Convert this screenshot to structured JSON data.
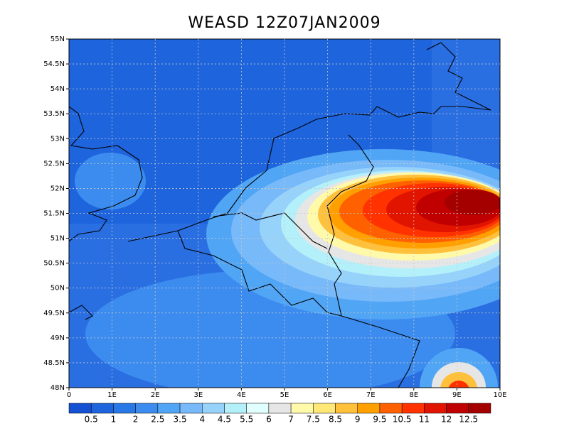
{
  "chart_data": {
    "type": "contour",
    "title": "WEASD 12Z07JAN2009",
    "xlim": [
      0,
      10
    ],
    "ylim": [
      48,
      55
    ],
    "xticks": [
      {
        "value": 0,
        "label": "0"
      },
      {
        "value": 1,
        "label": "1E"
      },
      {
        "value": 2,
        "label": "2E"
      },
      {
        "value": 3,
        "label": "3E"
      },
      {
        "value": 4,
        "label": "4E"
      },
      {
        "value": 5,
        "label": "5E"
      },
      {
        "value": 6,
        "label": "6E"
      },
      {
        "value": 7,
        "label": "7E"
      },
      {
        "value": 8,
        "label": "8E"
      },
      {
        "value": 9,
        "label": "9E"
      },
      {
        "value": 10,
        "label": "10E"
      }
    ],
    "yticks": [
      {
        "value": 48,
        "label": "48N"
      },
      {
        "value": 48.5,
        "label": "48.5N"
      },
      {
        "value": 49,
        "label": "49N"
      },
      {
        "value": 49.5,
        "label": "49.5N"
      },
      {
        "value": 50,
        "label": "50N"
      },
      {
        "value": 50.5,
        "label": "50.5N"
      },
      {
        "value": 51,
        "label": "51N"
      },
      {
        "value": 51.5,
        "label": "51.5N"
      },
      {
        "value": 52,
        "label": "52N"
      },
      {
        "value": 52.5,
        "label": "52.5N"
      },
      {
        "value": 53,
        "label": "53N"
      },
      {
        "value": 53.5,
        "label": "53.5N"
      },
      {
        "value": 54,
        "label": "54N"
      },
      {
        "value": 54.5,
        "label": "54.5N"
      },
      {
        "value": 55,
        "label": "55N"
      }
    ],
    "grid": true,
    "colorbar": {
      "labels": [
        0.5,
        1,
        2,
        2.5,
        3.5,
        4,
        4.5,
        5.5,
        6,
        7,
        7.5,
        8.5,
        9,
        9.5,
        10.5,
        11,
        12,
        12.5
      ],
      "colors": [
        "#1450d2",
        "#1e64dc",
        "#2878e6",
        "#3c8cf0",
        "#50a5f5",
        "#78b9fa",
        "#96d2fa",
        "#b4f0fa",
        "#e1ffff",
        "#e6e6e6",
        "#fffaaa",
        "#ffe878",
        "#ffc03c",
        "#ffa000",
        "#ff6000",
        "#ff3200",
        "#e11400",
        "#c00000",
        "#a50000"
      ]
    }
  }
}
